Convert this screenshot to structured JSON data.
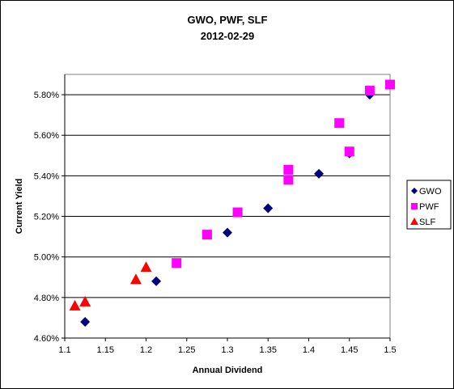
{
  "chart_data": {
    "type": "scatter",
    "title": "GWO, PWF, SLF",
    "subtitle": "2012-02-29",
    "xlabel": "Annual Dividend",
    "ylabel": "Current Yield",
    "xlim": [
      1.1,
      1.5
    ],
    "ylim": [
      4.6,
      5.9
    ],
    "x_ticks": [
      "1.1",
      "1.15",
      "1.2",
      "1.25",
      "1.3",
      "1.35",
      "1.4",
      "1.45",
      "1.5"
    ],
    "y_ticks": [
      "4.60%",
      "4.80%",
      "5.00%",
      "5.20%",
      "5.40%",
      "5.60%",
      "5.80%"
    ],
    "grid": "horizontal",
    "legend_position": "right",
    "series": [
      {
        "name": "GWO",
        "marker": "diamond",
        "color": "#000080",
        "points": [
          {
            "x": 1.125,
            "y": 4.68
          },
          {
            "x": 1.2125,
            "y": 4.88
          },
          {
            "x": 1.3,
            "y": 5.12
          },
          {
            "x": 1.35,
            "y": 5.24
          },
          {
            "x": 1.4125,
            "y": 5.41
          },
          {
            "x": 1.45,
            "y": 5.51
          },
          {
            "x": 1.475,
            "y": 5.8
          }
        ]
      },
      {
        "name": "PWF",
        "marker": "square",
        "color": "#FF00FF",
        "points": [
          {
            "x": 1.2375,
            "y": 4.97
          },
          {
            "x": 1.275,
            "y": 5.11
          },
          {
            "x": 1.3125,
            "y": 5.22
          },
          {
            "x": 1.375,
            "y": 5.38
          },
          {
            "x": 1.375,
            "y": 5.43
          },
          {
            "x": 1.4375,
            "y": 5.66
          },
          {
            "x": 1.45,
            "y": 5.52
          },
          {
            "x": 1.475,
            "y": 5.82
          },
          {
            "x": 1.5,
            "y": 5.85
          }
        ]
      },
      {
        "name": "SLF",
        "marker": "triangle",
        "color": "#FF0000",
        "points": [
          {
            "x": 1.1125,
            "y": 4.76
          },
          {
            "x": 1.125,
            "y": 4.78
          },
          {
            "x": 1.1875,
            "y": 4.89
          },
          {
            "x": 1.2,
            "y": 4.95
          }
        ]
      }
    ]
  }
}
